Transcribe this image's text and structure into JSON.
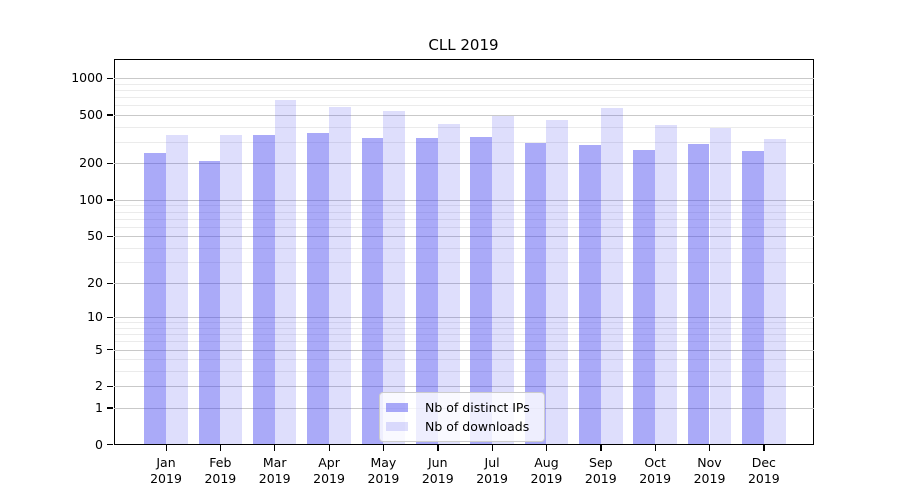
{
  "title": "CLL 2019",
  "chart_data": {
    "type": "bar",
    "title": "CLL 2019",
    "categories": [
      "Jan",
      "Feb",
      "Mar",
      "Apr",
      "May",
      "Jun",
      "Jul",
      "Aug",
      "Sep",
      "Oct",
      "Nov",
      "Dec"
    ],
    "category_year": "2019",
    "series": [
      {
        "name": "Nb of distinct IPs",
        "color": "rgba(62,62,240,0.44)",
        "values": [
          242,
          210,
          344,
          358,
          326,
          322,
          330,
          296,
          283,
          258,
          290,
          253
        ]
      },
      {
        "name": "Nb of downloads",
        "color": "rgba(62,62,240,0.17)",
        "values": [
          344,
          344,
          665,
          586,
          540,
          422,
          490,
          452,
          575,
          415,
          393,
          318
        ]
      }
    ],
    "y_axis": {
      "scale": "log10(1+v)",
      "major_ticks": [
        0,
        1,
        2,
        5,
        10,
        20,
        50,
        100,
        200,
        500,
        1000
      ],
      "minor_ticks": [
        3,
        4,
        6,
        7,
        8,
        9,
        30,
        40,
        60,
        70,
        80,
        90,
        300,
        400,
        600,
        700,
        800,
        900
      ],
      "ylim": [
        0,
        1450
      ]
    },
    "grid": {
      "major_color": "#c9c9c9",
      "minor_color": "#ebebeb"
    },
    "legend_position": "lower center"
  }
}
